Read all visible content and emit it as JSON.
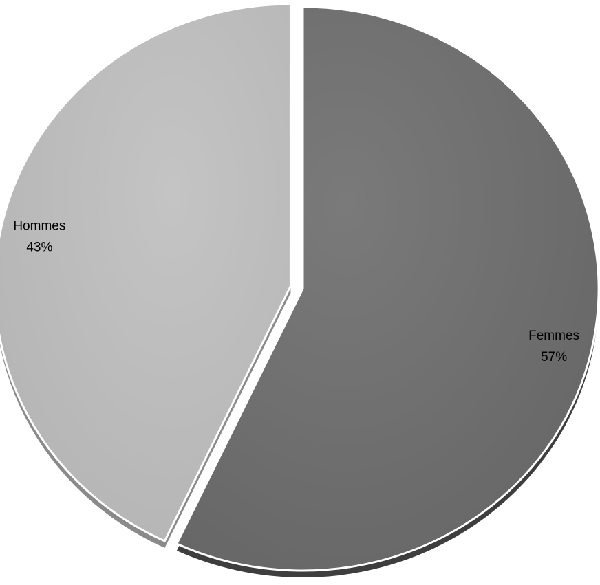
{
  "chart_data": {
    "type": "pie",
    "slices": [
      {
        "label": "Femmes",
        "value": 57,
        "value_label": "57%",
        "color": "#727272",
        "exploded": false
      },
      {
        "label": "Hommes",
        "value": 43,
        "value_label": "43%",
        "color": "#bdbdbd",
        "exploded": true
      }
    ],
    "title": "",
    "legend": "none",
    "labels_inside": true,
    "style": "3d-beveled"
  }
}
